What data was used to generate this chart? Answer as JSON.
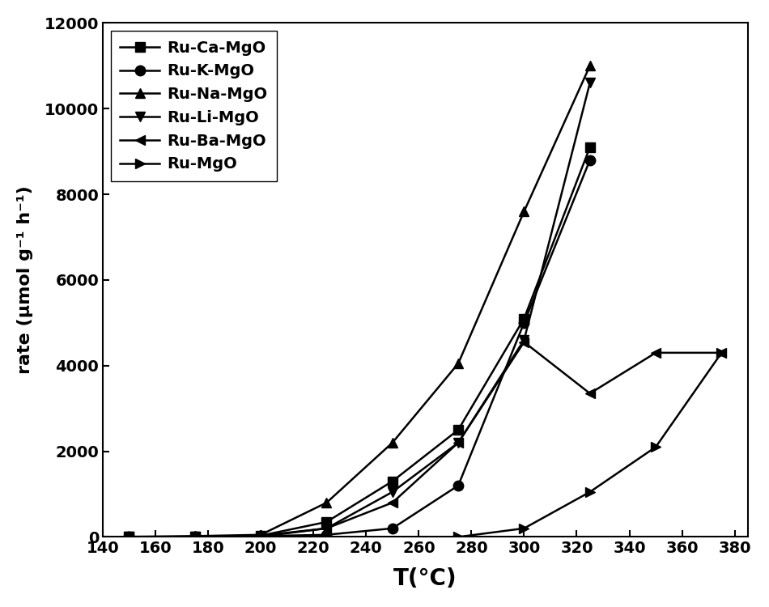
{
  "series": [
    {
      "label": "Ru-Ca-MgO",
      "marker": "s",
      "x": [
        150,
        175,
        200,
        225,
        250,
        275,
        300,
        325
      ],
      "y": [
        0,
        5,
        30,
        350,
        1300,
        2500,
        5100,
        9100
      ]
    },
    {
      "label": "Ru-K-MgO",
      "marker": "o",
      "x": [
        150,
        175,
        200,
        225,
        250,
        275,
        300,
        325
      ],
      "y": [
        0,
        5,
        20,
        50,
        200,
        1200,
        5000,
        8800
      ]
    },
    {
      "label": "Ru-Na-MgO",
      "marker": "^",
      "x": [
        150,
        175,
        200,
        225,
        250,
        275,
        300,
        325
      ],
      "y": [
        5,
        20,
        50,
        800,
        2200,
        4050,
        7600,
        11000
      ]
    },
    {
      "label": "Ru-Li-MgO",
      "marker": "v",
      "x": [
        150,
        175,
        200,
        225,
        250,
        275,
        300,
        325
      ],
      "y": [
        0,
        5,
        10,
        200,
        1050,
        2200,
        4600,
        10600
      ]
    },
    {
      "label": "Ru-Ba-MgO",
      "marker": "<",
      "x": [
        150,
        175,
        200,
        225,
        250,
        275,
        300,
        325,
        350,
        375
      ],
      "y": [
        0,
        5,
        30,
        200,
        800,
        2200,
        4550,
        3350,
        4300,
        4300
      ]
    },
    {
      "label": "Ru-MgO",
      "marker": ">",
      "x": [
        275,
        300,
        325,
        350,
        375
      ],
      "y": [
        0,
        200,
        1050,
        2100,
        4300
      ]
    }
  ],
  "xlim": [
    140,
    385
  ],
  "ylim": [
    0,
    12000
  ],
  "xticks": [
    140,
    160,
    180,
    200,
    220,
    240,
    260,
    280,
    300,
    320,
    340,
    360,
    380
  ],
  "yticks": [
    0,
    2000,
    4000,
    6000,
    8000,
    10000,
    12000
  ],
  "xlabel": "T(°C)",
  "ylabel": "rate (μmol g⁻¹ h⁻¹)",
  "color": "black",
  "linewidth": 1.8,
  "markersize": 9,
  "legend_loc": "upper left",
  "background_color": "#ffffff"
}
